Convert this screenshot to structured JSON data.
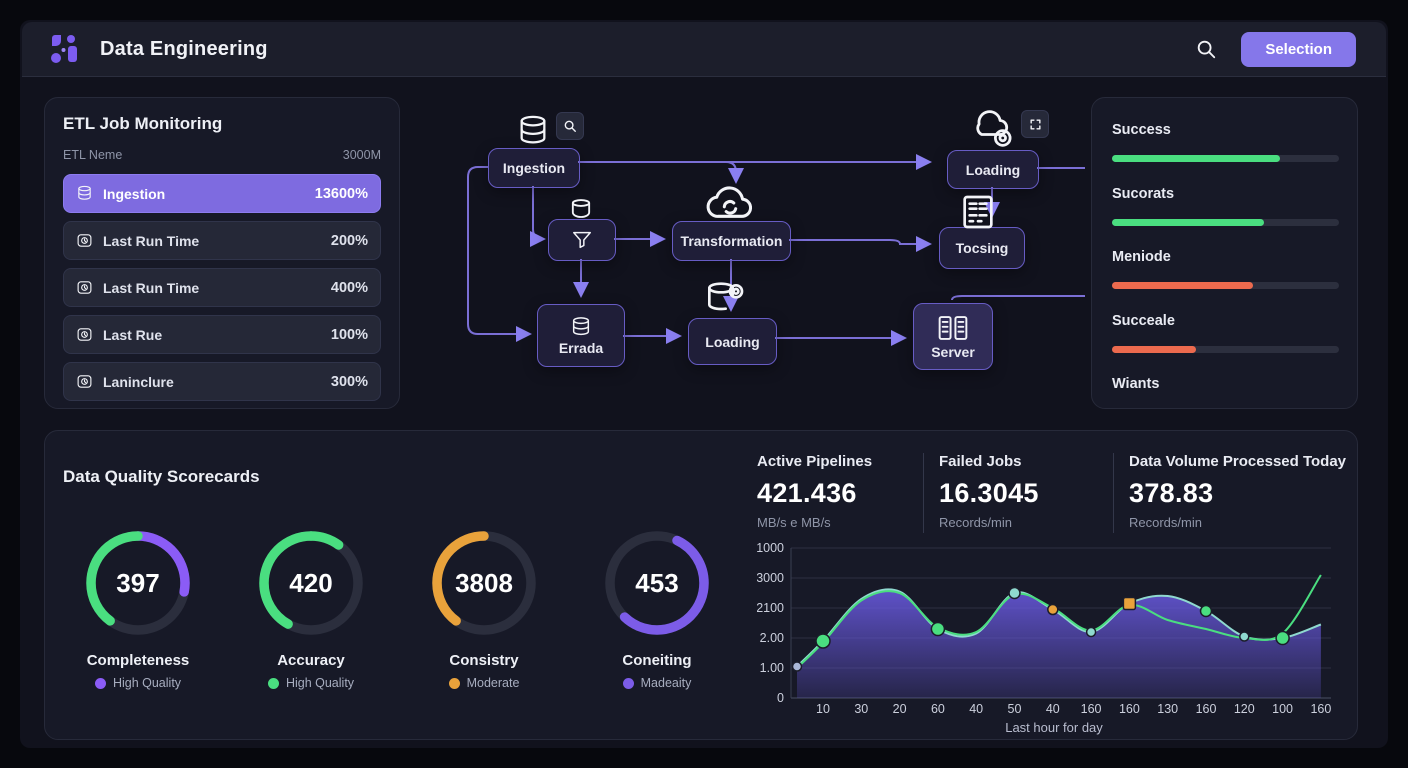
{
  "header": {
    "title": "Data Engineering",
    "search_label": "search",
    "button_label": "Selection",
    "accent_color": "#8577ea"
  },
  "etl_panel": {
    "title": "ETL Job Monitoring",
    "col_left": "ETL Neme",
    "col_right": "3000M",
    "items": [
      {
        "icon": "database-icon",
        "label": "Ingestion",
        "value": "13600%",
        "selected": true
      },
      {
        "icon": "clock-icon",
        "label": "Last Run Time",
        "value": "200%",
        "selected": false
      },
      {
        "icon": "clock-icon",
        "label": "Last Run Time",
        "value": "400%",
        "selected": false
      },
      {
        "icon": "clock-icon",
        "label": "Last Rue",
        "value": "100%",
        "selected": false
      },
      {
        "icon": "clock-icon",
        "label": "Laninclure",
        "value": "300%",
        "selected": false
      }
    ]
  },
  "diagram": {
    "nodes": {
      "ingestion": "Ingestion",
      "transformation": "Transformation",
      "loading_top": "Loading",
      "tocsing": "Tocsing",
      "errada": "Errada",
      "loading_bottom": "Loading",
      "server": "Server"
    }
  },
  "progress_panel": {
    "bars": [
      {
        "label": "Success",
        "pct": 74,
        "color": "#4ade80"
      },
      {
        "label": "Sucorats",
        "pct": 67,
        "color": "#4ade80"
      },
      {
        "label": "Meniode",
        "pct": 62,
        "color": "#ec6a4e"
      },
      {
        "label": "Succeale",
        "pct": 37,
        "color": "#ec6a4e"
      },
      {
        "label": "Wiants",
        "pct": 0,
        "color": "#4ade80"
      }
    ]
  },
  "scorecards": {
    "title": "Data Quality Scorecards",
    "gauges": [
      {
        "value": "397",
        "label": "Completeness",
        "legend": "High Quality",
        "legend_color": "#8b5cf6",
        "segments": [
          {
            "color": "#8b5cf6",
            "start": 0.0,
            "end": 0.28
          },
          {
            "color": "#4ade80",
            "start": 0.6,
            "end": 1.0
          }
        ]
      },
      {
        "value": "420",
        "label": "Accuracy",
        "legend": "High Quality",
        "legend_color": "#4ade80",
        "segments": [
          {
            "color": "#4ade80",
            "start": 0.58,
            "end": 1.0
          },
          {
            "color": "#4ade80",
            "start": 0.0,
            "end": 0.1
          }
        ]
      },
      {
        "value": "3808",
        "label": "Consistry",
        "legend": "Moderate",
        "legend_color": "#e9a23b",
        "segments": [
          {
            "color": "#e9a23b",
            "start": 0.6,
            "end": 1.0
          }
        ]
      },
      {
        "value": "453",
        "label": "Coneiting",
        "legend": "Madeaity",
        "legend_color": "#7c5ce8",
        "segments": [
          {
            "color": "#7c5ce8",
            "start": 0.07,
            "end": 0.62
          }
        ]
      }
    ]
  },
  "stats": [
    {
      "label": "Active Pipelines",
      "value": "421.436",
      "unit": "MB/s e MB/s"
    },
    {
      "label": "Failed Jobs",
      "value": "16.3045",
      "unit": "Records/min"
    },
    {
      "label": "Data Volume Processed Today",
      "value": "378.83",
      "unit": "Records/min"
    }
  ],
  "chart_data": {
    "type": "area",
    "title": "",
    "xlabel": "Last hour for day",
    "ylabel": "",
    "y_ticks": [
      "1000",
      "3000",
      "2100",
      "2.00",
      "1.00",
      "0"
    ],
    "x_ticks": [
      "10",
      "30",
      "20",
      "60",
      "40",
      "50",
      "40",
      "160",
      "160",
      "130",
      "160",
      "120",
      "100",
      "160"
    ],
    "ylim": [
      0,
      5
    ],
    "grid": true,
    "series": [
      {
        "name": "pipeline-volume-area",
        "line_color": "#8fd9cf",
        "fill_color": "#6c5ce7",
        "values": [
          1.05,
          1.9,
          3.3,
          3.55,
          2.3,
          2.15,
          3.5,
          2.95,
          2.2,
          3.15,
          3.4,
          2.9,
          2.05,
          2.0,
          2.45
        ]
      },
      {
        "name": "throughput-line",
        "line_color": "#4ade80",
        "values": [
          1.0,
          1.85,
          3.25,
          3.5,
          2.35,
          2.2,
          3.45,
          3.0,
          2.25,
          3.1,
          2.6,
          2.3,
          2.0,
          2.15,
          4.1
        ]
      }
    ],
    "markers": [
      {
        "pt": 0,
        "color": "#aab7d8",
        "r": 4.5,
        "shape": "circle"
      },
      {
        "pt": 1,
        "color": "#4ade80",
        "r": 7,
        "shape": "circle"
      },
      {
        "pt": 4,
        "color": "#4ade80",
        "r": 6.5,
        "shape": "circle"
      },
      {
        "pt": 6,
        "color": "#8fd9cf",
        "r": 5.5,
        "shape": "circle"
      },
      {
        "pt": 7,
        "color": "#e9a23b",
        "r": 5,
        "shape": "circle"
      },
      {
        "pt": 8,
        "color": "#8fd9cf",
        "r": 4.5,
        "shape": "circle"
      },
      {
        "pt": 9,
        "color": "#e9a23b",
        "r": 6,
        "shape": "square"
      },
      {
        "pt": 11,
        "color": "#4ade80",
        "r": 5.5,
        "shape": "circle"
      },
      {
        "pt": 12,
        "color": "#8fd9cf",
        "r": 4.5,
        "shape": "circle"
      },
      {
        "pt": 13,
        "color": "#4ade80",
        "r": 6.5,
        "shape": "circle"
      }
    ]
  }
}
